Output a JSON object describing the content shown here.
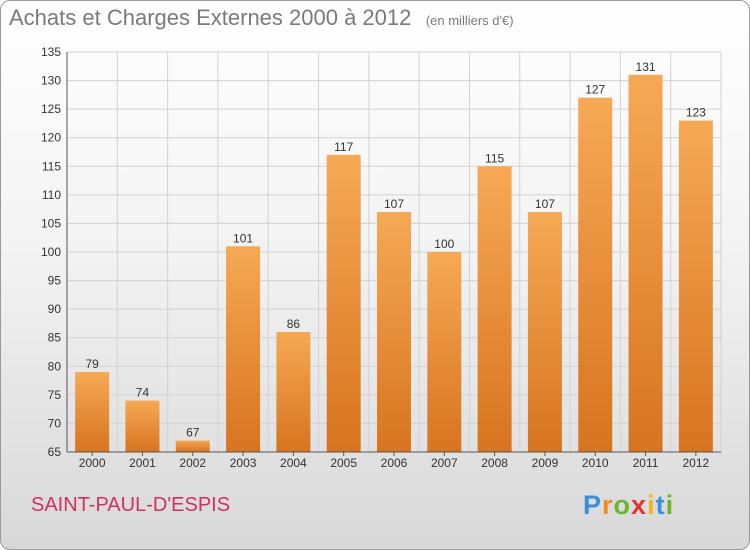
{
  "title": "Achats et Charges Externes 2000 à 2012",
  "unit": "(en milliers d'€)",
  "commune": "SAINT-PAUL-D'ESPIS",
  "logo": {
    "letters": [
      "P",
      "r",
      "o",
      "x",
      "i",
      "t",
      "i"
    ],
    "colors": [
      "#3a8fd6",
      "#f28a1c",
      "#6cb52d",
      "#e2342d",
      "#f2b51c",
      "#3a8fd6",
      "#6cb52d"
    ]
  },
  "colors": {
    "bar_top": "#f6a955",
    "bar_bottom": "#d8741f",
    "grid": "#d2d2d2",
    "title": "#7a7a7a",
    "commune": "#d1315e"
  },
  "chart_data": {
    "type": "bar",
    "categories": [
      "2000",
      "2001",
      "2002",
      "2003",
      "2004",
      "2005",
      "2006",
      "2007",
      "2008",
      "2009",
      "2010",
      "2011",
      "2012"
    ],
    "values": [
      79,
      74,
      67,
      101,
      86,
      117,
      107,
      100,
      115,
      107,
      127,
      131,
      123
    ],
    "ylim": [
      65,
      135
    ],
    "yticks": [
      65,
      70,
      75,
      80,
      85,
      90,
      95,
      100,
      105,
      110,
      115,
      120,
      125,
      130,
      135
    ],
    "grid": true,
    "data_labels": true
  }
}
